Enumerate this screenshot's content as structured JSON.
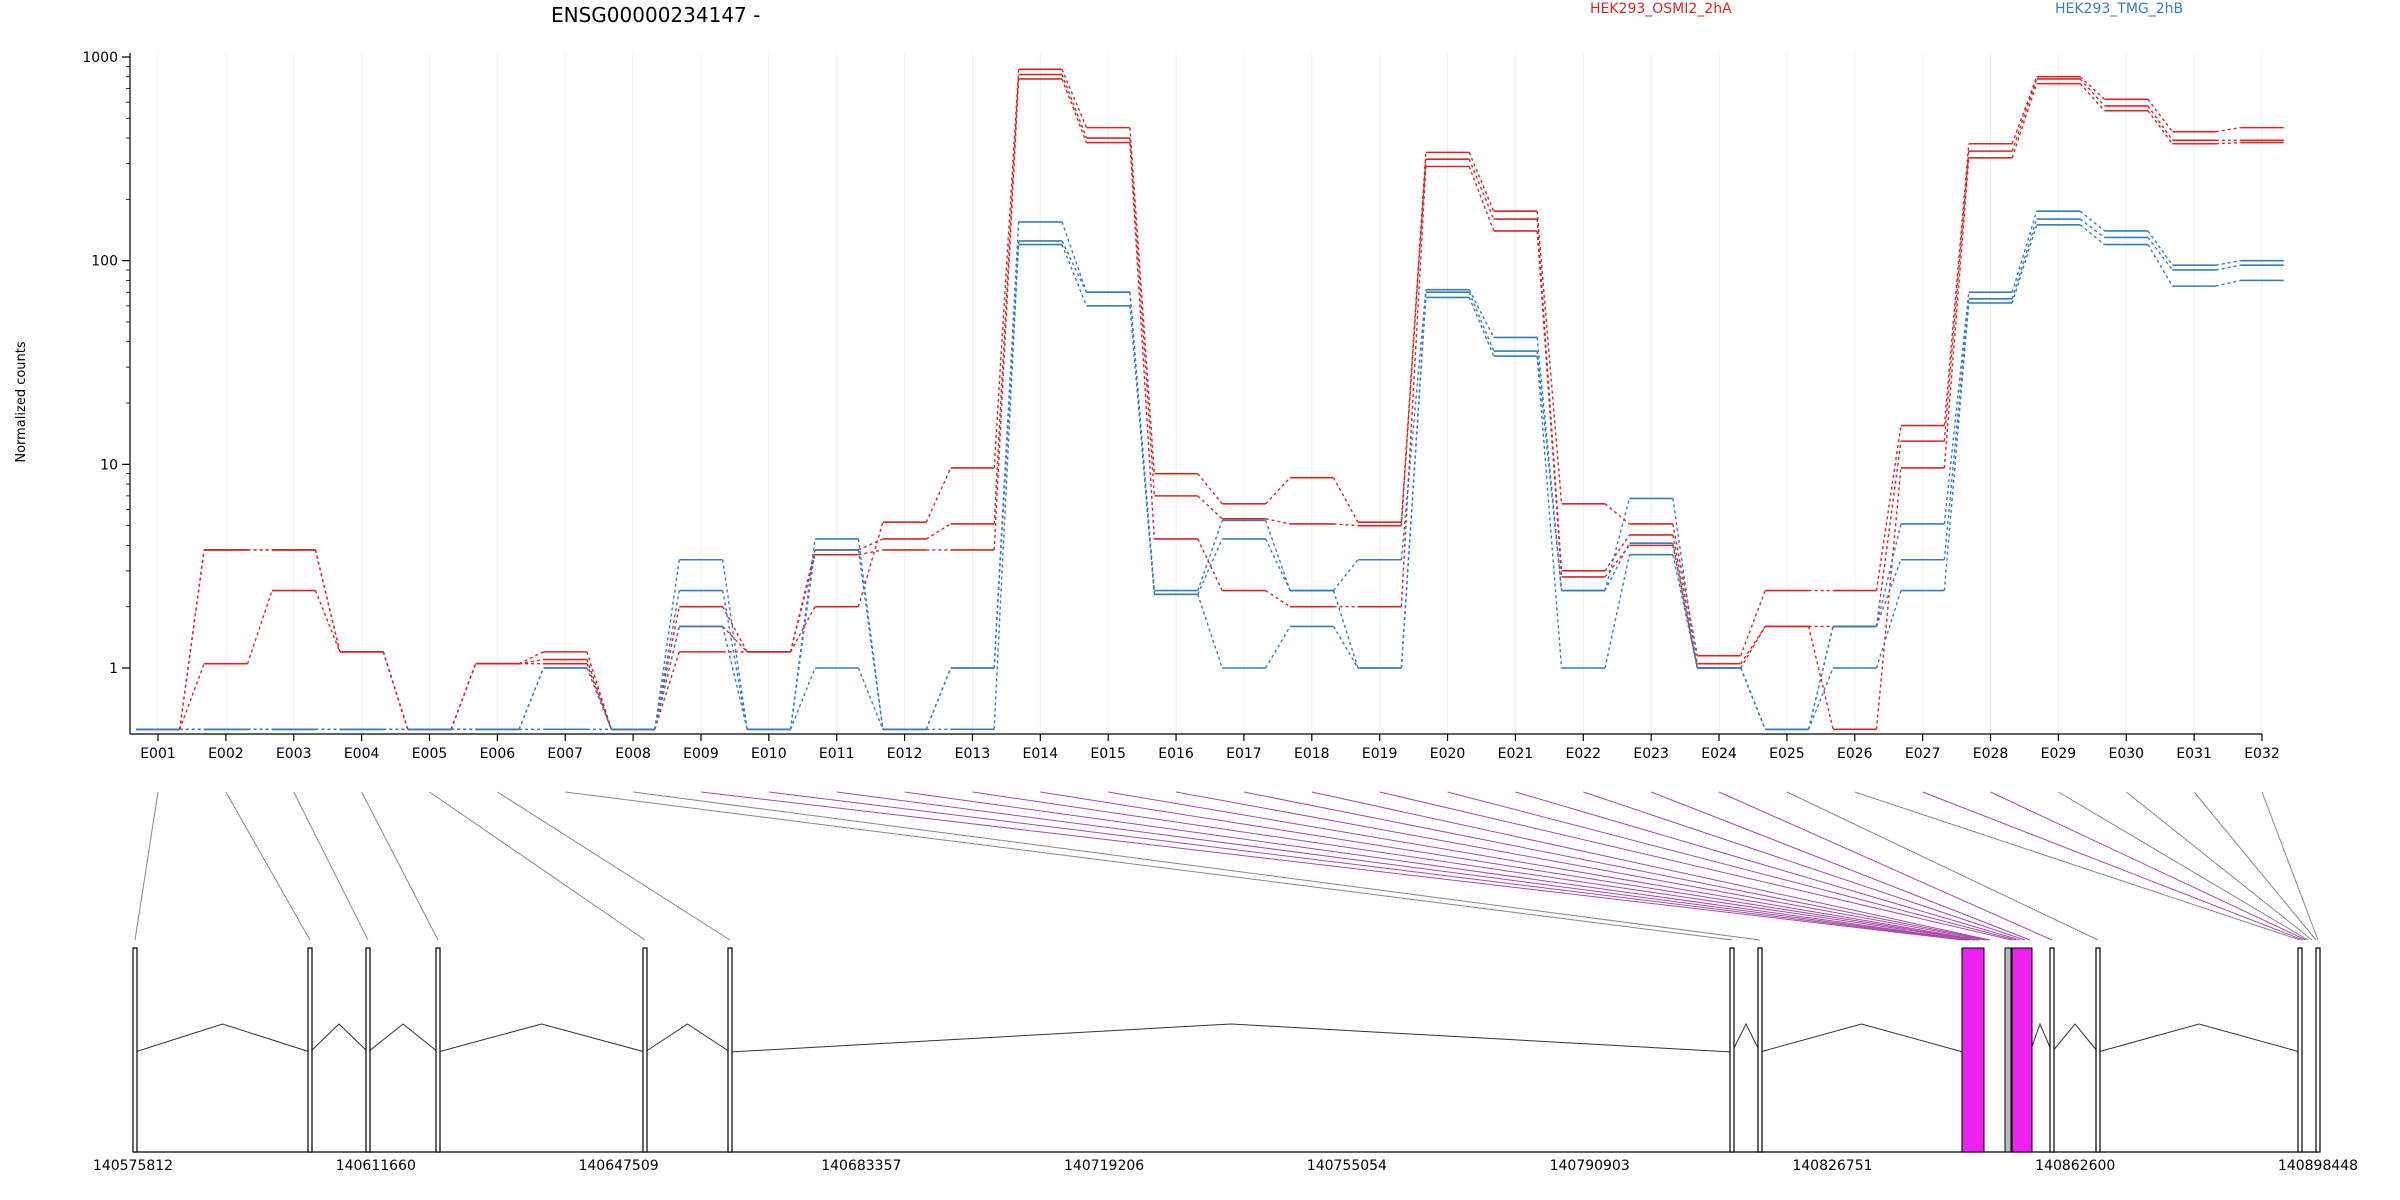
{
  "chart_data": {
    "type": "line",
    "title": "ENSG00000234147 -",
    "ylabel": "Normalized counts",
    "yscale": "log",
    "ylim": [
      0.5,
      1000
    ],
    "yticks": [
      "1",
      "10",
      "100",
      "1000"
    ],
    "categories": [
      "E001",
      "E002",
      "E003",
      "E004",
      "E005",
      "E006",
      "E007",
      "E008",
      "E009",
      "E010",
      "E011",
      "E012",
      "E013",
      "E014",
      "E015",
      "E016",
      "E017",
      "E018",
      "E019",
      "E020",
      "E021",
      "E022",
      "E023",
      "E024",
      "E025",
      "E026",
      "E027",
      "E028",
      "E029",
      "E030",
      "E031",
      "E032"
    ],
    "grid": true,
    "legend_placement": "top",
    "groups": [
      {
        "name": "HEK293_OSMI2_2hA",
        "color": "#d62728"
      },
      {
        "name": "HEK293_TMG_2hB",
        "color": "#377eb8"
      }
    ],
    "series": [
      {
        "group": 0,
        "values": [
          0.5,
          3.8,
          3.8,
          1.2,
          0.5,
          1.05,
          1.2,
          0.5,
          1.6,
          1.2,
          2.0,
          5.2,
          9.6,
          870,
          450,
          9.0,
          6.4,
          8.6,
          5.2,
          340,
          175,
          6.4,
          5.1,
          1.15,
          2.4,
          2.4,
          15.5,
          375,
          800,
          620,
          430,
          450
        ]
      },
      {
        "group": 0,
        "values": [
          0.5,
          1.05,
          2.4,
          1.2,
          0.5,
          1.05,
          1.1,
          0.5,
          2.0,
          1.2,
          3.8,
          4.3,
          5.1,
          820,
          400,
          7.0,
          5.4,
          5.1,
          5.0,
          315,
          160,
          3.0,
          4.5,
          1.05,
          1.6,
          1.6,
          13.0,
          345,
          780,
          575,
          390,
          390
        ]
      },
      {
        "group": 0,
        "values": [
          0.5,
          3.8,
          3.8,
          1.2,
          0.5,
          1.05,
          1.05,
          0.5,
          1.2,
          1.2,
          3.6,
          3.8,
          3.8,
          780,
          380,
          4.3,
          2.4,
          2.0,
          2.0,
          290,
          140,
          2.8,
          4.0,
          1.0,
          1.6,
          0.5,
          9.6,
          320,
          740,
          545,
          375,
          380
        ]
      },
      {
        "group": 1,
        "values": [
          0.5,
          0.5,
          0.5,
          0.5,
          0.5,
          0.5,
          1.0,
          0.5,
          3.4,
          0.5,
          4.3,
          0.5,
          1.0,
          155,
          70,
          2.4,
          5.3,
          2.4,
          3.4,
          72,
          42,
          2.4,
          6.8,
          1.0,
          0.5,
          1.6,
          5.1,
          70,
          175,
          140,
          95,
          100
        ]
      },
      {
        "group": 1,
        "values": [
          0.5,
          0.5,
          0.5,
          0.5,
          0.5,
          0.5,
          0.5,
          0.5,
          2.4,
          0.5,
          3.8,
          0.5,
          0.5,
          125,
          70,
          2.3,
          4.3,
          2.4,
          1.0,
          70,
          36,
          2.4,
          4.1,
          1.0,
          0.5,
          1.6,
          3.4,
          65,
          160,
          130,
          90,
          95
        ]
      },
      {
        "group": 1,
        "values": [
          0.5,
          0.5,
          0.5,
          0.5,
          0.5,
          0.5,
          1.0,
          0.5,
          1.6,
          0.5,
          1.0,
          0.5,
          1.0,
          120,
          60,
          2.3,
          1.0,
          1.6,
          1.0,
          66,
          34,
          1.0,
          3.6,
          1.0,
          0.5,
          1.0,
          2.4,
          62,
          150,
          120,
          75,
          80
        ]
      }
    ],
    "gene_model": {
      "coordinates": [
        "140575812",
        "140611660",
        "140647509",
        "140683357",
        "140719206",
        "140755054",
        "140790903",
        "140826751",
        "140862600",
        "140898448"
      ],
      "exon_link_colors": {
        "constitutive": "#888888",
        "differential": "#a64ca6"
      },
      "highlight_color": "#ee22ee"
    }
  }
}
